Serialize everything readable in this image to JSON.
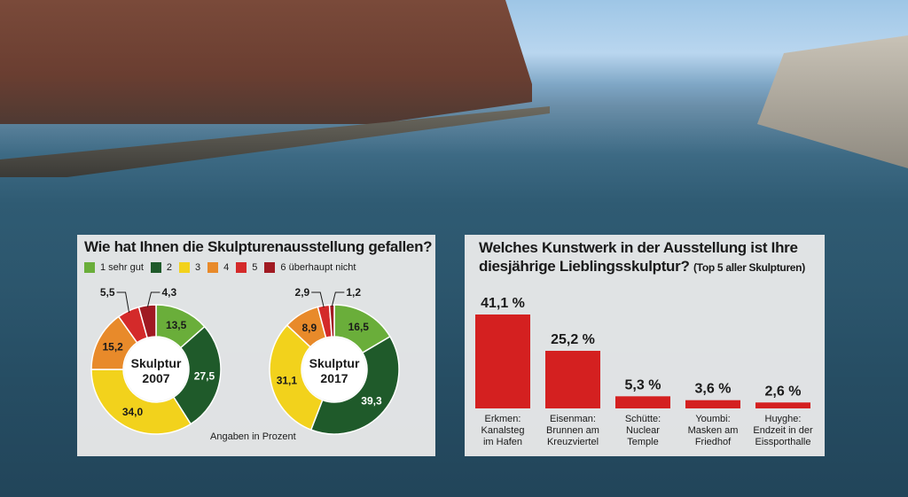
{
  "chart_data": [
    {
      "type": "pie",
      "title": "Wie hat Ihnen die Skulpturenausstellung gefallen?",
      "legend": [
        {
          "label": "1 sehr gut",
          "color": "#6aae3a"
        },
        {
          "label": "2",
          "color": "#1f5a2a"
        },
        {
          "label": "3",
          "color": "#f2d21c"
        },
        {
          "label": "4",
          "color": "#e88a2a"
        },
        {
          "label": "5",
          "color": "#d42a2a"
        },
        {
          "label": "6 überhaupt nicht",
          "color": "#a01a22"
        }
      ],
      "note": "Angaben in Prozent",
      "pies": [
        {
          "center_line1": "Skulptur",
          "center_line2": "2007",
          "values": [
            13.5,
            27.5,
            34.0,
            15.2,
            5.5,
            4.3
          ],
          "labels": [
            "13,5",
            "27,5",
            "34,0",
            "15,2",
            "5,5",
            "4,3"
          ]
        },
        {
          "center_line1": "Skulptur",
          "center_line2": "2017",
          "values": [
            16.5,
            39.3,
            31.1,
            8.9,
            2.9,
            1.2
          ],
          "labels": [
            "16,5",
            "39,3",
            "31,1",
            "8,9",
            "2,9",
            "1,2"
          ]
        }
      ]
    },
    {
      "type": "bar",
      "title_line1": "Welches Kunstwerk in der Ausstellung ist Ihre",
      "title_line2": "diesjährige Lieblingsskulptur?",
      "title_small": "(Top 5 aller Skulpturen)",
      "bar_color": "#d42020",
      "values": [
        41.1,
        25.2,
        5.3,
        3.6,
        2.6
      ],
      "value_labels": [
        "41,1 %",
        "25,2 %",
        "5,3 %",
        "3,6 %",
        "2,6 %"
      ],
      "categories": [
        [
          "Erkmen:",
          "Kanalsteg",
          "im Hafen"
        ],
        [
          "Eisenman:",
          "Brunnen am",
          "Kreuzviertel"
        ],
        [
          "Schütte:",
          "Nuclear",
          "Temple"
        ],
        [
          "Youmbi:",
          "Masken am",
          "Friedhof"
        ],
        [
          "Huyghe:",
          "Endzeit in der",
          "Eissporthalle"
        ]
      ]
    }
  ]
}
